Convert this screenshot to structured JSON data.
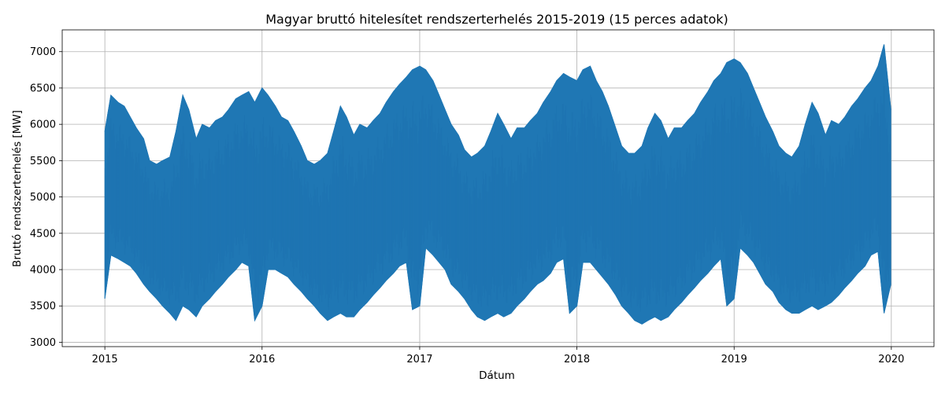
{
  "chart_data": {
    "type": "line",
    "title": "Magyar bruttó hitelesítet rendszerterhelés 2015-2019 (15 perces adatok)",
    "xlabel": "Dátum",
    "ylabel": "Bruttó rendszerterhelés [MW]",
    "xlim": [
      "2014-09-24",
      "2020-04-09"
    ],
    "ylim": [
      2940,
      7300
    ],
    "grid": true,
    "x_ticks": [
      "2015",
      "2016",
      "2017",
      "2018",
      "2019",
      "2020"
    ],
    "y_ticks": [
      3000,
      3500,
      4000,
      4500,
      5000,
      5500,
      6000,
      6500,
      7000
    ],
    "series": [
      {
        "color": "#1f77b4",
        "x": [
          "2015-01-01",
          "2015-01-15",
          "2015-02-01",
          "2015-02-15",
          "2015-03-01",
          "2015-03-15",
          "2015-04-01",
          "2015-04-15",
          "2015-05-01",
          "2015-05-15",
          "2015-06-01",
          "2015-06-15",
          "2015-07-01",
          "2015-07-15",
          "2015-08-01",
          "2015-08-15",
          "2015-09-01",
          "2015-09-15",
          "2015-10-01",
          "2015-10-15",
          "2015-11-01",
          "2015-11-15",
          "2015-12-01",
          "2015-12-15",
          "2016-01-01",
          "2016-01-15",
          "2016-02-01",
          "2016-02-15",
          "2016-03-01",
          "2016-03-15",
          "2016-04-01",
          "2016-04-15",
          "2016-05-01",
          "2016-05-15",
          "2016-06-01",
          "2016-06-15",
          "2016-07-01",
          "2016-07-15",
          "2016-08-01",
          "2016-08-15",
          "2016-09-01",
          "2016-09-15",
          "2016-10-01",
          "2016-10-15",
          "2016-11-01",
          "2016-11-15",
          "2016-12-01",
          "2016-12-15",
          "2017-01-01",
          "2017-01-15",
          "2017-02-01",
          "2017-02-15",
          "2017-03-01",
          "2017-03-15",
          "2017-04-01",
          "2017-04-15",
          "2017-05-01",
          "2017-05-15",
          "2017-06-01",
          "2017-06-15",
          "2017-07-01",
          "2017-07-15",
          "2017-08-01",
          "2017-08-15",
          "2017-09-01",
          "2017-09-15",
          "2017-10-01",
          "2017-10-15",
          "2017-11-01",
          "2017-11-15",
          "2017-12-01",
          "2017-12-15",
          "2018-01-01",
          "2018-01-15",
          "2018-02-01",
          "2018-02-15",
          "2018-03-01",
          "2018-03-15",
          "2018-04-01",
          "2018-04-15",
          "2018-05-01",
          "2018-05-15",
          "2018-06-01",
          "2018-06-15",
          "2018-07-01",
          "2018-07-15",
          "2018-08-01",
          "2018-08-15",
          "2018-09-01",
          "2018-09-15",
          "2018-10-01",
          "2018-10-15",
          "2018-11-01",
          "2018-11-15",
          "2018-12-01",
          "2018-12-15",
          "2019-01-01",
          "2019-01-15",
          "2019-02-01",
          "2019-02-15",
          "2019-03-01",
          "2019-03-15",
          "2019-04-01",
          "2019-04-15",
          "2019-05-01",
          "2019-05-15",
          "2019-06-01",
          "2019-06-15",
          "2019-07-01",
          "2019-07-15",
          "2019-08-01",
          "2019-08-15",
          "2019-09-01",
          "2019-09-15",
          "2019-10-01",
          "2019-10-15",
          "2019-11-01",
          "2019-11-15",
          "2019-12-01",
          "2019-12-15",
          "2019-12-31"
        ],
        "max": [
          5900,
          6400,
          6300,
          6250,
          6100,
          5950,
          5800,
          5500,
          5450,
          5500,
          5550,
          5900,
          6400,
          6200,
          5800,
          6000,
          5950,
          6050,
          6100,
          6200,
          6350,
          6400,
          6450,
          6300,
          6500,
          6400,
          6250,
          6100,
          6050,
          5900,
          5700,
          5500,
          5450,
          5500,
          5600,
          5900,
          6250,
          6100,
          5850,
          6000,
          5950,
          6050,
          6150,
          6300,
          6450,
          6550,
          6650,
          6750,
          6800,
          6750,
          6600,
          6400,
          6200,
          6000,
          5850,
          5650,
          5550,
          5600,
          5700,
          5900,
          6150,
          6000,
          5800,
          5950,
          5950,
          6050,
          6150,
          6300,
          6450,
          6600,
          6700,
          6650,
          6600,
          6750,
          6800,
          6600,
          6450,
          6250,
          5950,
          5700,
          5600,
          5600,
          5700,
          5950,
          6150,
          6050,
          5800,
          5950,
          5950,
          6050,
          6150,
          6300,
          6450,
          6600,
          6700,
          6850,
          6900,
          6850,
          6700,
          6500,
          6300,
          6100,
          5900,
          5700,
          5600,
          5550,
          5700,
          6000,
          6300,
          6150,
          5850,
          6050,
          6000,
          6100,
          6250,
          6350,
          6500,
          6600,
          6800,
          7100,
          6200
        ],
        "min": [
          3600,
          4200,
          4150,
          4100,
          4050,
          3950,
          3800,
          3700,
          3600,
          3500,
          3400,
          3300,
          3500,
          3450,
          3350,
          3500,
          3600,
          3700,
          3800,
          3900,
          4000,
          4100,
          4050,
          3300,
          3500,
          4000,
          4000,
          3950,
          3900,
          3800,
          3700,
          3600,
          3500,
          3400,
          3300,
          3350,
          3400,
          3350,
          3350,
          3450,
          3550,
          3650,
          3750,
          3850,
          3950,
          4050,
          4100,
          3450,
          3500,
          4300,
          4200,
          4100,
          4000,
          3800,
          3700,
          3600,
          3450,
          3350,
          3300,
          3350,
          3400,
          3350,
          3400,
          3500,
          3600,
          3700,
          3800,
          3850,
          3950,
          4100,
          4150,
          3400,
          3500,
          4100,
          4100,
          4000,
          3900,
          3800,
          3650,
          3500,
          3400,
          3300,
          3250,
          3300,
          3350,
          3300,
          3350,
          3450,
          3550,
          3650,
          3750,
          3850,
          3950,
          4050,
          4150,
          3500,
          3600,
          4300,
          4200,
          4100,
          3950,
          3800,
          3700,
          3550,
          3450,
          3400,
          3400,
          3450,
          3500,
          3450,
          3500,
          3550,
          3650,
          3750,
          3850,
          3950,
          4050,
          4200,
          4250,
          3400,
          3800
        ]
      }
    ]
  }
}
